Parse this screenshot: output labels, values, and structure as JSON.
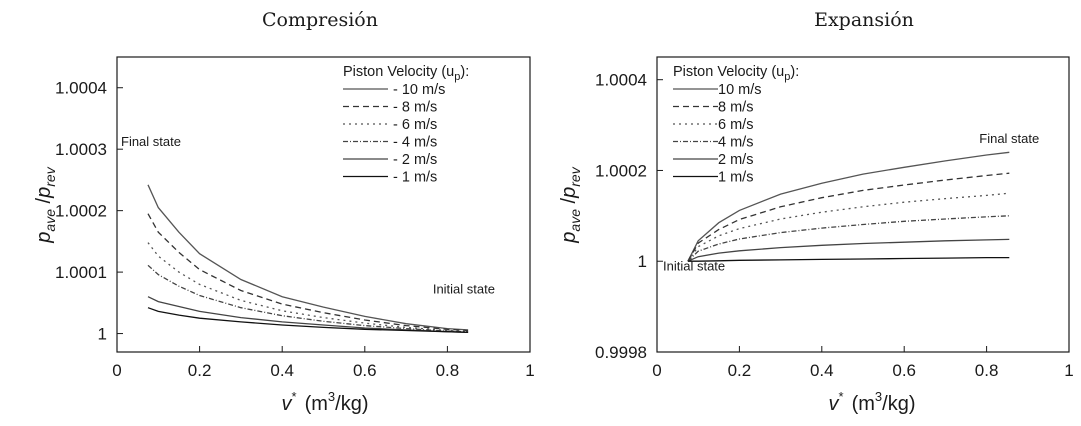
{
  "chart_data": [
    {
      "type": "line",
      "title": "Compresión",
      "ylabel_main": "p",
      "ylabel_sub1": "ave",
      "ylabel_slash": " /",
      "ylabel_main2": "p",
      "ylabel_sub2": "rev",
      "xlabel_var": "v",
      "xlabel_sup": "*",
      "xlabel_unit_pre": "(m",
      "xlabel_unit_sup": "3",
      "xlabel_unit_post": "/kg)",
      "xlim": [
        0,
        1
      ],
      "ylim": [
        0.99997,
        1.00045
      ],
      "xticks": [
        0,
        0.2,
        0.4,
        0.6,
        0.8,
        1
      ],
      "xtick_labels": [
        "0",
        "0.2",
        "0.4",
        "0.6",
        "0.8",
        "1"
      ],
      "yticks": [
        1,
        1.0001,
        1.0002,
        1.0003,
        1.0004
      ],
      "ytick_labels": [
        "1",
        "1.0001",
        "1.0002",
        "1.0003",
        "1.0004"
      ],
      "legend_title": "Piston Velocity (u",
      "legend_title_sub": "p",
      "legend_title_end": "):",
      "legend_position": "top-right",
      "annotations": [
        {
          "text": "Final state",
          "x": 0.075,
          "y": 1.000305
        },
        {
          "text": "Initial state",
          "x": 0.84,
          "y": 1.000065
        }
      ],
      "series": [
        {
          "name": "- 10  m/s",
          "dash": "",
          "color": "#555555",
          "x": [
            0.075,
            0.1,
            0.15,
            0.2,
            0.3,
            0.4,
            0.5,
            0.6,
            0.7,
            0.8,
            0.85
          ],
          "y": [
            1.000242,
            1.000205,
            1.000165,
            1.00013,
            1.000088,
            1.00006,
            1.000043,
            1.000028,
            1.000016,
            1.000008,
            1.000006
          ]
        },
        {
          "name": "- 8  m/s",
          "dash": "6,4",
          "color": "#333333",
          "x": [
            0.075,
            0.1,
            0.15,
            0.2,
            0.3,
            0.4,
            0.5,
            0.6,
            0.7,
            0.8,
            0.85
          ],
          "y": [
            1.000195,
            1.000165,
            1.000132,
            1.000104,
            1.00007,
            1.000048,
            1.000034,
            1.000022,
            1.000013,
            1.000007,
            1.000005
          ]
        },
        {
          "name": "- 6  m/s",
          "dash": "2,4",
          "color": "#555555",
          "x": [
            0.075,
            0.1,
            0.15,
            0.2,
            0.3,
            0.4,
            0.5,
            0.6,
            0.7,
            0.8,
            0.85
          ],
          "y": [
            1.000148,
            1.000126,
            1.0001,
            1.00008,
            1.000054,
            1.000037,
            1.000026,
            1.000017,
            1.00001,
            1.000005,
            1.000004
          ]
        },
        {
          "name": "- 4  m/s",
          "dash": "5,2,1,2",
          "color": "#444444",
          "x": [
            0.075,
            0.1,
            0.15,
            0.2,
            0.3,
            0.4,
            0.5,
            0.6,
            0.7,
            0.8,
            0.85
          ],
          "y": [
            1.000111,
            1.000096,
            1.000077,
            1.000062,
            1.000042,
            1.000029,
            1.00002,
            1.000013,
            1.000008,
            1.000004,
            1.000003
          ]
        },
        {
          "name": "- 2  m/s",
          "dash": "",
          "color": "#444444",
          "x": [
            0.075,
            0.1,
            0.15,
            0.2,
            0.3,
            0.4,
            0.5,
            0.6,
            0.7,
            0.8,
            0.85
          ],
          "y": [
            1.00006,
            1.000052,
            1.000044,
            1.000036,
            1.000026,
            1.000019,
            1.000014,
            1.000009,
            1.000006,
            1.000003,
            1.000002
          ]
        },
        {
          "name": "- 1  m/s",
          "dash": "",
          "color": "#111111",
          "x": [
            0.075,
            0.1,
            0.15,
            0.2,
            0.3,
            0.4,
            0.5,
            0.6,
            0.7,
            0.8,
            0.85
          ],
          "y": [
            1.000042,
            1.000036,
            1.00003,
            1.000025,
            1.000019,
            1.000014,
            1.00001,
            1.000007,
            1.000005,
            1.000003,
            1.000002
          ]
        }
      ]
    },
    {
      "type": "line",
      "title": "Expansión",
      "ylabel_main": "p",
      "ylabel_sub1": "ave",
      "ylabel_slash": " /",
      "ylabel_main2": "p",
      "ylabel_sub2": "rev",
      "xlabel_var": "v",
      "xlabel_sup": "*",
      "xlabel_unit_pre": "(m",
      "xlabel_unit_sup": "3",
      "xlabel_unit_post": "/kg)",
      "xlim": [
        0,
        1
      ],
      "ylim": [
        0.9998,
        1.00045
      ],
      "xticks": [
        0,
        0.2,
        0.4,
        0.6,
        0.8,
        1
      ],
      "xtick_labels": [
        "0",
        "0.2",
        "0.4",
        "0.6",
        "0.8",
        "1"
      ],
      "yticks": [
        0.9998,
        1,
        1.0002,
        1.0004
      ],
      "ytick_labels": [
        "0.9998",
        "1",
        "1.0002",
        "1.0004"
      ],
      "legend_title": "Piston Velocity (u",
      "legend_title_sub": "p",
      "legend_title_end": "):",
      "legend_position": "top-left",
      "annotations": [
        {
          "text": "Final state",
          "x": 0.855,
          "y": 1.00026
        },
        {
          "text": "Initial state",
          "x": 0.075,
          "y": 0.99998
        }
      ],
      "series": [
        {
          "name": "10  m/s",
          "dash": "",
          "color": "#555555",
          "x": [
            0.075,
            0.1,
            0.15,
            0.2,
            0.3,
            0.4,
            0.5,
            0.6,
            0.7,
            0.8,
            0.855
          ],
          "y": [
            1.0,
            1.000045,
            1.000085,
            1.000112,
            1.000148,
            1.000172,
            1.000192,
            1.000207,
            1.000221,
            1.000234,
            1.00024
          ]
        },
        {
          "name": "8  m/s",
          "dash": "6,4",
          "color": "#333333",
          "x": [
            0.075,
            0.1,
            0.15,
            0.2,
            0.3,
            0.4,
            0.5,
            0.6,
            0.7,
            0.8,
            0.855
          ],
          "y": [
            1.0,
            1.00004,
            1.00007,
            1.000092,
            1.00012,
            1.00014,
            1.000156,
            1.000168,
            1.000179,
            1.000189,
            1.000194
          ]
        },
        {
          "name": "6  m/s",
          "dash": "2,4",
          "color": "#555555",
          "x": [
            0.075,
            0.1,
            0.15,
            0.2,
            0.3,
            0.4,
            0.5,
            0.6,
            0.7,
            0.8,
            0.855
          ],
          "y": [
            1.0,
            1.000032,
            1.000056,
            1.000072,
            1.000093,
            1.000108,
            1.00012,
            1.00013,
            1.000138,
            1.000145,
            1.00015
          ]
        },
        {
          "name": "4  m/s",
          "dash": "5,2,1,2",
          "color": "#444444",
          "x": [
            0.075,
            0.1,
            0.15,
            0.2,
            0.3,
            0.4,
            0.5,
            0.6,
            0.7,
            0.8,
            0.855
          ],
          "y": [
            1.0,
            1.000022,
            1.000038,
            1.000049,
            1.000063,
            1.000073,
            1.000081,
            1.000088,
            1.000093,
            1.000098,
            1.0001
          ]
        },
        {
          "name": "2  m/s",
          "dash": "",
          "color": "#444444",
          "x": [
            0.075,
            0.1,
            0.15,
            0.2,
            0.3,
            0.4,
            0.5,
            0.6,
            0.7,
            0.8,
            0.855
          ],
          "y": [
            1.0,
            1.00001,
            1.000018,
            1.000023,
            1.00003,
            1.000035,
            1.000039,
            1.000042,
            1.000045,
            1.000047,
            1.000048
          ]
        },
        {
          "name": "1  m/s",
          "dash": "",
          "color": "#111111",
          "x": [
            0.075,
            0.1,
            0.15,
            0.2,
            0.3,
            0.4,
            0.5,
            0.6,
            0.7,
            0.8,
            0.855
          ],
          "y": [
            1.0,
            1.0,
            1.000001,
            1.000002,
            1.000003,
            1.000004,
            1.000005,
            1.000006,
            1.000007,
            1.000008,
            1.000008
          ]
        }
      ]
    }
  ]
}
